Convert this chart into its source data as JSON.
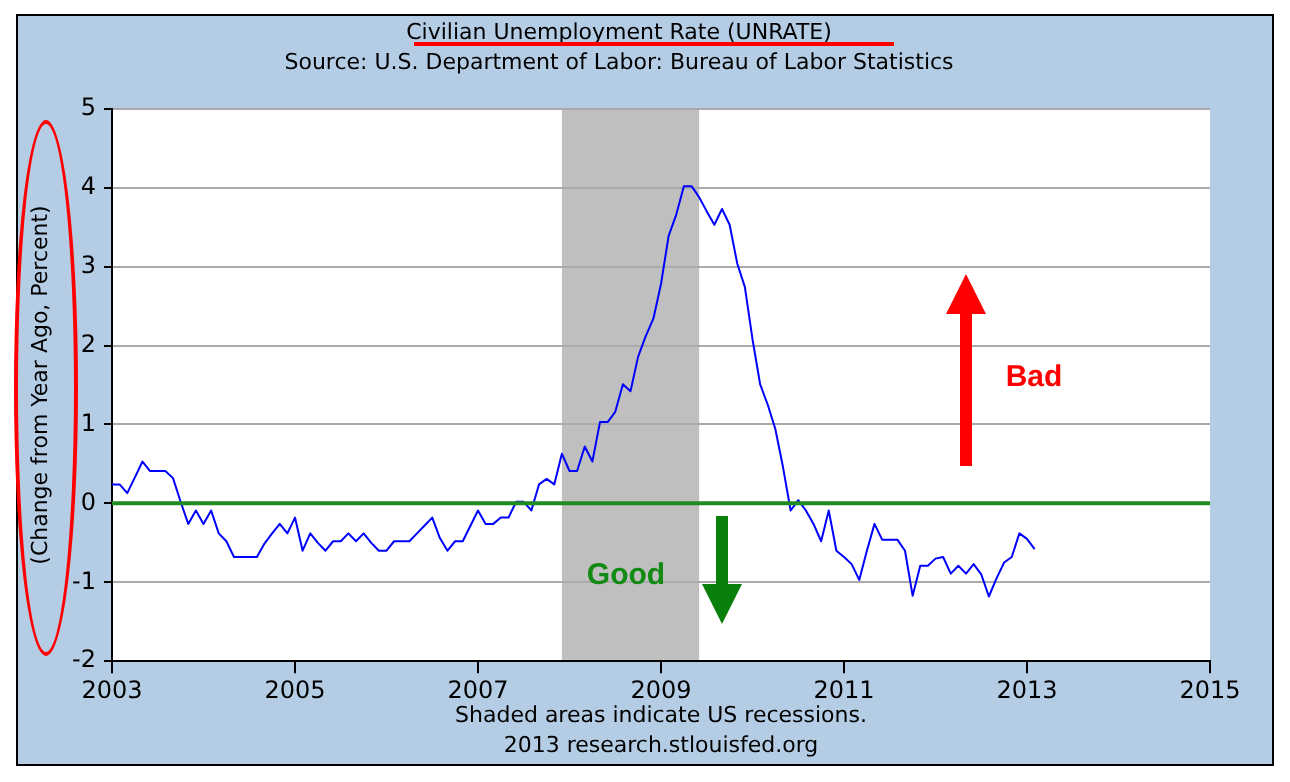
{
  "chart_data": {
    "type": "line",
    "title": "Civilian Unemployment Rate (UNRATE)",
    "subtitle": "Source: U.S. Department of Labor: Bureau of Labor Statistics",
    "ylabel": "(Change from Year Ago, Percent)",
    "x": [
      "2003-01",
      "2003-02",
      "2003-03",
      "2003-04",
      "2003-05",
      "2003-06",
      "2003-07",
      "2003-08",
      "2003-09",
      "2003-10",
      "2003-11",
      "2003-12",
      "2004-01",
      "2004-02",
      "2004-03",
      "2004-04",
      "2004-05",
      "2004-06",
      "2004-07",
      "2004-08",
      "2004-09",
      "2004-10",
      "2004-11",
      "2004-12",
      "2005-01",
      "2005-02",
      "2005-03",
      "2005-04",
      "2005-05",
      "2005-06",
      "2005-07",
      "2005-08",
      "2005-09",
      "2005-10",
      "2005-11",
      "2005-12",
      "2006-01",
      "2006-02",
      "2006-03",
      "2006-04",
      "2006-05",
      "2006-06",
      "2006-07",
      "2006-08",
      "2006-09",
      "2006-10",
      "2006-11",
      "2007-01",
      "2007-02",
      "2007-03",
      "2007-04",
      "2007-05",
      "2007-06",
      "2007-07",
      "2007-08",
      "2007-09",
      "2007-10",
      "2007-11",
      "2007-12",
      "2008-01",
      "2008-02",
      "2008-03",
      "2008-04",
      "2008-05",
      "2008-06",
      "2008-07",
      "2008-08",
      "2008-09",
      "2008-10",
      "2008-11",
      "2008-12",
      "2009-01",
      "2009-02",
      "2009-03",
      "2009-04",
      "2009-05",
      "2009-06",
      "2009-07",
      "2009-08",
      "2009-09",
      "2009-10",
      "2009-11",
      "2009-12",
      "2010-01",
      "2010-02",
      "2010-03",
      "2010-04",
      "2010-05",
      "2010-06",
      "2010-07",
      "2010-08",
      "2010-09",
      "2010-10",
      "2010-11",
      "2010-12",
      "2011-01",
      "2011-02",
      "2011-03",
      "2011-04",
      "2011-05",
      "2011-06",
      "2011-07",
      "2011-08",
      "2011-09",
      "2011-10",
      "2011-11",
      "2011-12",
      "2012-01",
      "2012-02",
      "2012-03",
      "2012-04",
      "2012-05",
      "2012-06",
      "2012-07",
      "2012-08",
      "2012-09",
      "2012-10",
      "2012-11",
      "2012-12",
      "2013-01",
      "2013-02"
    ],
    "series": [
      {
        "color": "#0000ff",
        "values": [
          0.24,
          0.24,
          0.13,
          0.33,
          0.53,
          0.41,
          0.41,
          0.41,
          0.32,
          0.02,
          -0.26,
          -0.09,
          -0.26,
          -0.09,
          -0.38,
          -0.48,
          -0.68,
          -0.68,
          -0.68,
          -0.68,
          -0.51,
          -0.38,
          -0.26,
          -0.38,
          -0.18,
          -0.6,
          -0.38,
          -0.5,
          -0.6,
          -0.48,
          -0.48,
          -0.38,
          -0.48,
          -0.38,
          -0.5,
          -0.6,
          -0.6,
          -0.48,
          -0.48,
          -0.48,
          -0.38,
          -0.28,
          -0.18,
          -0.44,
          -0.6,
          -0.48,
          -0.48,
          -0.09,
          -0.26,
          -0.26,
          -0.18,
          -0.18,
          0.02,
          0.02,
          -0.09,
          0.24,
          0.31,
          0.24,
          0.63,
          0.41,
          0.41,
          0.72,
          0.53,
          1.03,
          1.03,
          1.16,
          1.51,
          1.42,
          1.86,
          2.12,
          2.34,
          2.78,
          3.39,
          3.66,
          4.02,
          4.02,
          3.88,
          3.7,
          3.53,
          3.73,
          3.53,
          3.04,
          2.74,
          2.08,
          1.51,
          1.25,
          0.94,
          0.46,
          -0.09,
          0.04,
          -0.09,
          -0.26,
          -0.48,
          -0.09,
          -0.6,
          -0.68,
          -0.77,
          -0.97,
          -0.6,
          -0.26,
          -0.46,
          -0.46,
          -0.46,
          -0.6,
          -1.17,
          -0.79,
          -0.79,
          -0.7,
          -0.68,
          -0.89,
          -0.79,
          -0.89,
          -0.77,
          -0.9,
          -1.18,
          -0.95,
          -0.75,
          -0.68,
          -0.38,
          -0.45,
          -0.58
        ]
      }
    ],
    "xlim": [
      "2003",
      "2015"
    ],
    "xticks": [
      "2003",
      "2005",
      "2007",
      "2009",
      "2011",
      "2013",
      "2015"
    ],
    "ylim": [
      -2,
      5
    ],
    "yticks": [
      -2,
      -1,
      0,
      1,
      2,
      3,
      4,
      5
    ],
    "grid": "y",
    "bands": [
      {
        "axis": "x",
        "from": "2007-12",
        "to": "2009-06",
        "color": "#bfbfbf"
      }
    ],
    "ref_lines": [
      {
        "axis": "y",
        "value": 0,
        "color": "#1e8c1e"
      }
    ],
    "annotations": [
      "Bad",
      "Good",
      "Shaded areas indicate US recessions.",
      "2013 research.stlouisfed.org"
    ]
  }
}
